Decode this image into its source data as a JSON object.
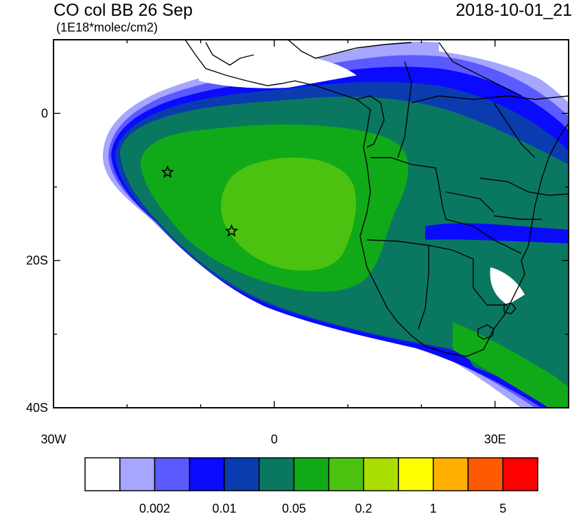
{
  "header": {
    "title": "CO col BB 26 Sep",
    "units": "(1E18*molec/cm2)",
    "timestamp": "2018-10-01_21"
  },
  "map": {
    "lat_labels": [
      {
        "text": "0",
        "lat": 0
      },
      {
        "text": "20S",
        "lat": -20
      },
      {
        "text": "40S",
        "lat": -40
      }
    ],
    "lon_labels": [
      {
        "text": "30W",
        "lon": -30
      },
      {
        "text": "0",
        "lon": 0
      },
      {
        "text": "30E",
        "lon": 30
      }
    ],
    "extent": {
      "lon_min": -30,
      "lon_max": 40,
      "lat_min": -40,
      "lat_max": 10
    },
    "markers": [
      {
        "name": "star-marker",
        "lon": -14.5,
        "lat": -8
      },
      {
        "name": "star-marker",
        "lon": -5.8,
        "lat": -16
      }
    ]
  },
  "colorbar": {
    "colors": [
      "#ffffff",
      "#a6a6ff",
      "#5a5aff",
      "#0a0aff",
      "#0a3cb0",
      "#0a7860",
      "#10aa18",
      "#4cc210",
      "#aadd00",
      "#ffff00",
      "#ffb000",
      "#ff5a00",
      "#ff0000"
    ],
    "labels": [
      {
        "text": "0.002",
        "boundary": 2
      },
      {
        "text": "0.01",
        "boundary": 4
      },
      {
        "text": "0.05",
        "boundary": 6
      },
      {
        "text": "0.2",
        "boundary": 8
      },
      {
        "text": "1",
        "boundary": 10
      },
      {
        "text": "5",
        "boundary": 12
      }
    ]
  }
}
